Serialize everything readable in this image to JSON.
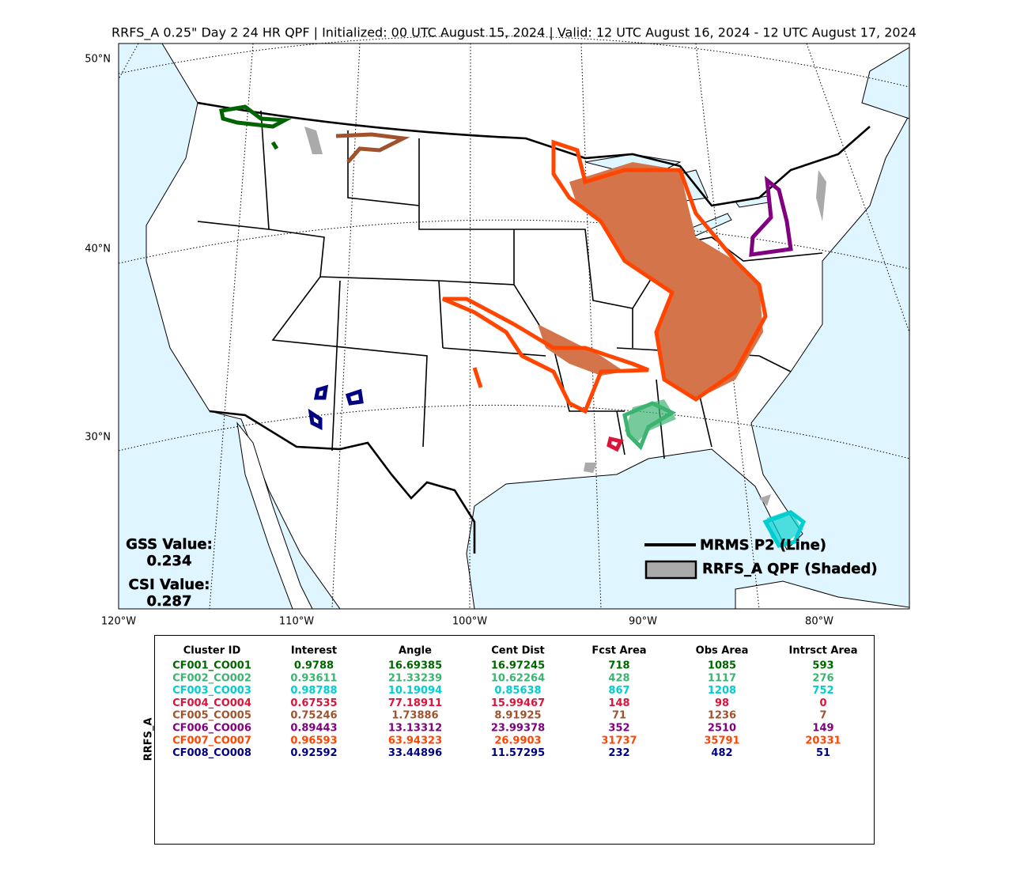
{
  "title": "RRFS_A 0.25\" Day 2 24 HR QPF | Initialized: 00 UTC August 15, 2024 | Valid: 12 UTC August 16, 2024 - 12 UTC August 17, 2024",
  "map": {
    "lat_labels": [
      "50°N",
      "40°N",
      "30°N"
    ],
    "lon_labels": [
      "120°W",
      "110°W",
      "100°W",
      "90°W",
      "80°W"
    ]
  },
  "scores": {
    "gss_label": "GSS Value:",
    "gss": "0.234",
    "csi_label": "CSI Value:",
    "csi": "0.287"
  },
  "legend": [
    "MRMS P2 (Line)",
    "RRFS_A QPF (Shaded)"
  ],
  "table": {
    "side_label": "RRFS_A",
    "columns": [
      "Cluster ID",
      "Interest",
      "Angle",
      "Cent Dist",
      "Fcst Area",
      "Obs Area",
      "Intrsct Area"
    ],
    "rows": [
      {
        "color": "#006400",
        "cells": [
          "CF001_CO001",
          "0.9788",
          "16.69385",
          "16.97245",
          "718",
          "1085",
          "593"
        ]
      },
      {
        "color": "#3cb371",
        "cells": [
          "CF002_CO002",
          "0.93611",
          "21.33239",
          "10.62264",
          "428",
          "1117",
          "276"
        ]
      },
      {
        "color": "#00ced1",
        "cells": [
          "CF003_CO003",
          "0.98788",
          "10.19094",
          "0.85638",
          "867",
          "1208",
          "752"
        ]
      },
      {
        "color": "#dc143c",
        "cells": [
          "CF004_CO004",
          "0.67535",
          "77.18911",
          "15.99467",
          "148",
          "98",
          "0"
        ]
      },
      {
        "color": "#a0522d",
        "cells": [
          "CF005_CO005",
          "0.75246",
          "1.73886",
          "8.91925",
          "71",
          "1236",
          "7"
        ]
      },
      {
        "color": "#800080",
        "cells": [
          "CF006_CO006",
          "0.89443",
          "13.13312",
          "23.99378",
          "352",
          "2510",
          "149"
        ]
      },
      {
        "color": "#ff4500",
        "cells": [
          "CF007_CO007",
          "0.96593",
          "63.94323",
          "26.9903",
          "31737",
          "35791",
          "20331"
        ]
      },
      {
        "color": "#000080",
        "cells": [
          "CF008_CO008",
          "0.92592",
          "33.44896",
          "11.57295",
          "232",
          "482",
          "51"
        ]
      }
    ]
  }
}
